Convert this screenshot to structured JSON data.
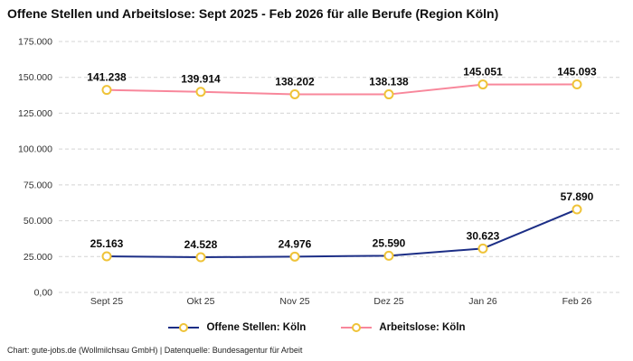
{
  "attribution": "Chart: gute-jobs.de (Wollmilchsau GmbH) | Datenquelle: Bundesagentur für Arbeit",
  "colors": {
    "offene_stellen": "#1c2e86",
    "arbeitslose": "#f8879b",
    "marker_stroke": "#efc338",
    "marker_fill": "#ffffff",
    "grid": "#d4d4d4"
  },
  "chart_data": {
    "type": "line",
    "title": "Offene Stellen und Arbeitslose: Sept 2025 - Feb 2026 für alle Berufe (Region Köln)",
    "xlabel": "",
    "ylabel": "",
    "ylim": [
      0,
      175000
    ],
    "grid": "horizontal-dashed",
    "legend_position": "bottom",
    "categories": [
      "Sept 25",
      "Okt 25",
      "Nov 25",
      "Dez 25",
      "Jan 26",
      "Feb 26"
    ],
    "y_ticks": {
      "values": [
        0,
        25000,
        50000,
        75000,
        100000,
        125000,
        150000,
        175000
      ],
      "labels": [
        "0,00",
        "25.000",
        "50.000",
        "75.000",
        "100.000",
        "125.000",
        "150.000",
        "175.000"
      ]
    },
    "series": [
      {
        "name": "Offene Stellen: Köln",
        "color": "#1c2e86",
        "values": [
          25163,
          24528,
          24976,
          25590,
          30623,
          57890
        ],
        "labels": [
          "25.163",
          "24.528",
          "24.976",
          "25.590",
          "30.623",
          "57.890"
        ]
      },
      {
        "name": "Arbeitslose: Köln",
        "color": "#f8879b",
        "values": [
          141238,
          139914,
          138202,
          138138,
          145051,
          145093
        ],
        "labels": [
          "141.238",
          "139.914",
          "138.202",
          "138.138",
          "145.051",
          "145.093"
        ]
      }
    ]
  }
}
